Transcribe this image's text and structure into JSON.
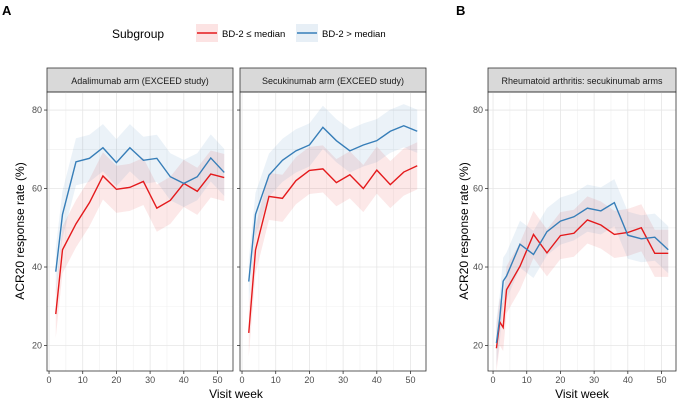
{
  "panel_labels": [
    "A",
    "B"
  ],
  "legend": {
    "title": "Subgroup",
    "items": [
      {
        "label": "BD-2 ≤ median",
        "color": "#e41a1c"
      },
      {
        "label": "BD-2 > median",
        "color": "#377eb8"
      }
    ]
  },
  "chart_data": [
    {
      "type": "line",
      "title": "Adalimumab arm (EXCEED study)",
      "xlabel": "Visit week",
      "ylabel": "ACR20 response rate (%)",
      "xlim": [
        -0.6,
        54.6
      ],
      "ylim": [
        13.5,
        84.6
      ],
      "xticks": [
        0,
        10,
        20,
        30,
        40,
        50
      ],
      "yticks": [
        20,
        40,
        60,
        80
      ],
      "grid": true,
      "x": [
        2,
        4,
        8,
        12,
        16,
        20,
        24,
        28,
        32,
        36,
        40,
        44,
        48,
        52
      ],
      "series": [
        {
          "name": "BD-2 ≤ median",
          "color": "#e41a1c",
          "ci": 6,
          "values": [
            28,
            44.4,
            51,
            56.4,
            63.2,
            59.8,
            60.3,
            61.8,
            55,
            57,
            61.3,
            59.3,
            63.7,
            62.8
          ]
        },
        {
          "name": "BD-2 > median",
          "color": "#377eb8",
          "ci": 6,
          "values": [
            38.8,
            53.4,
            66.8,
            67.7,
            70.4,
            66.6,
            70.4,
            67.2,
            67.7,
            63,
            61.3,
            63,
            67.8,
            64.1
          ]
        }
      ]
    },
    {
      "type": "line",
      "title": "Secukinumab arm (EXCEED study)",
      "xlabel": "Visit week",
      "ylabel": "ACR20 response rate (%)",
      "xlim": [
        -0.6,
        54.6
      ],
      "ylim": [
        13.5,
        84.6
      ],
      "xticks": [
        0,
        10,
        20,
        30,
        40,
        50
      ],
      "yticks": [
        20,
        40,
        60,
        80
      ],
      "grid": true,
      "x": [
        2,
        4,
        8,
        12,
        16,
        20,
        24,
        28,
        32,
        36,
        40,
        44,
        48,
        52
      ],
      "series": [
        {
          "name": "BD-2 ≤ median",
          "color": "#e41a1c",
          "ci": 6,
          "values": [
            23.2,
            44.3,
            58,
            57.5,
            62,
            64.6,
            65,
            61.5,
            63.5,
            60,
            64.7,
            61,
            64.2,
            65.8
          ]
        },
        {
          "name": "BD-2 > median",
          "color": "#377eb8",
          "ci": 5.5,
          "values": [
            36.3,
            53.4,
            63.4,
            67.2,
            69.6,
            71.1,
            75.6,
            72.2,
            69.6,
            71.1,
            72.2,
            74.6,
            76,
            74.6
          ]
        }
      ]
    },
    {
      "type": "line",
      "title": "Rheumatoid arthritis: secukinumab arms",
      "xlabel": "Visit week",
      "ylabel": "ACR20 response rate (%)",
      "xlim": [
        -1.5,
        54.3
      ],
      "ylim": [
        13.5,
        84.6
      ],
      "xticks": [
        0,
        10,
        20,
        30,
        40,
        50
      ],
      "yticks": [
        20,
        40,
        60,
        80
      ],
      "grid": true,
      "x": [
        1,
        2,
        3,
        4,
        8,
        12,
        16,
        20,
        24,
        28,
        32,
        36,
        40,
        44,
        48,
        52
      ],
      "series": [
        {
          "name": "BD-2 ≤ median",
          "color": "#e41a1c",
          "ci": 6,
          "values": [
            19.3,
            26,
            24.6,
            34.2,
            40.2,
            48.3,
            43.6,
            48,
            48.6,
            52,
            50.7,
            48.3,
            48.8,
            50,
            43.5,
            43.5
          ]
        },
        {
          "name": "BD-2 > median",
          "color": "#377eb8",
          "ci": 6,
          "values": [
            20.6,
            27,
            36.4,
            37.7,
            45.8,
            43.2,
            49,
            51.7,
            52.8,
            55,
            54.3,
            56.4,
            48.1,
            47.2,
            47.6,
            44.4
          ]
        }
      ]
    }
  ]
}
